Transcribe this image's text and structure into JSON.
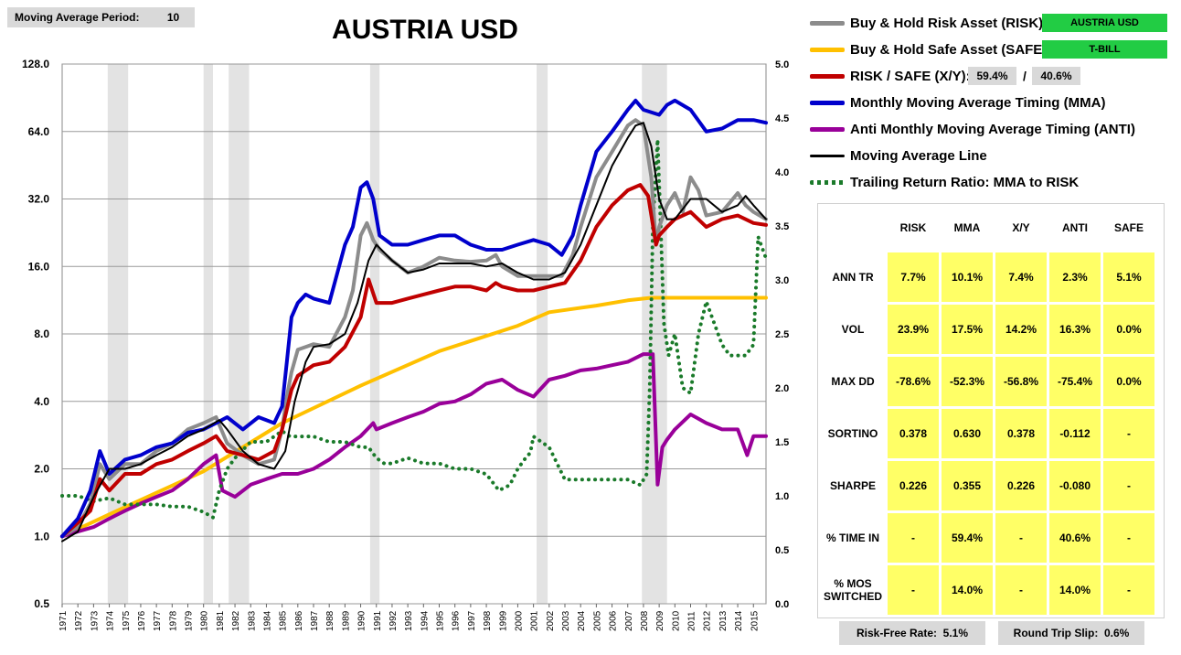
{
  "header": {
    "period_label": "Moving Average Period:",
    "period_value": "10"
  },
  "chart_data": {
    "type": "line",
    "title": "AUSTRIA USD",
    "y_scale": "log2",
    "ylim": [
      0.5,
      128.0
    ],
    "y_ticks": [
      "0.5",
      "1.0",
      "2.0",
      "4.0",
      "8.0",
      "16.0",
      "32.0",
      "64.0",
      "128.0"
    ],
    "y2lim": [
      0.0,
      5.0
    ],
    "y2_ticks": [
      "0.0",
      "0.5",
      "1.0",
      "1.5",
      "2.0",
      "2.5",
      "3.0",
      "3.5",
      "4.0",
      "4.5",
      "5.0"
    ],
    "x_ticks": [
      "1971",
      "1972",
      "1973",
      "1974",
      "1975",
      "1976",
      "1977",
      "1978",
      "1979",
      "1980",
      "1981",
      "1982",
      "1983",
      "1984",
      "1985",
      "1986",
      "1987",
      "1988",
      "1989",
      "1990",
      "1991",
      "1992",
      "1993",
      "1994",
      "1995",
      "1996",
      "1997",
      "1998",
      "1999",
      "2000",
      "2001",
      "2002",
      "2003",
      "2004",
      "2005",
      "2006",
      "2007",
      "2008",
      "2009",
      "2010",
      "2011",
      "2012",
      "2013",
      "2014",
      "2015"
    ],
    "xlim": [
      1971.0,
      2015.8
    ],
    "grid": "horizontal",
    "recessions": [
      [
        1973.9,
        1975.2
      ],
      [
        1980.0,
        1980.6
      ],
      [
        1981.6,
        1982.9
      ],
      [
        1990.6,
        1991.2
      ],
      [
        2001.2,
        2001.9
      ],
      [
        2007.9,
        2009.5
      ]
    ],
    "series": [
      {
        "name": "RISK",
        "color": "#8c8c8c",
        "axis": "left",
        "x": [
          1971.0,
          1972.0,
          1972.8,
          1973.4,
          1974.0,
          1975.0,
          1976.0,
          1977.0,
          1978.0,
          1979.0,
          1980.0,
          1980.8,
          1981.5,
          1982.5,
          1983.5,
          1984.5,
          1985.0,
          1985.3,
          1985.6,
          1986.0,
          1986.5,
          1987.0,
          1988.0,
          1989.0,
          1989.5,
          1990.0,
          1990.4,
          1990.8,
          1991.2,
          1992.0,
          1993.0,
          1994.0,
          1995.0,
          1996.0,
          1997.0,
          1998.0,
          1998.6,
          1999.0,
          2000.0,
          2001.0,
          2002.0,
          2002.8,
          2003.5,
          2004.0,
          2005.0,
          2006.0,
          2007.0,
          2007.5,
          2008.0,
          2008.5,
          2008.8,
          2009.0,
          2009.5,
          2010.0,
          2010.5,
          2011.0,
          2011.5,
          2012.0,
          2013.0,
          2014.0,
          2014.5,
          2015.0,
          2015.8
        ],
        "y": [
          1.0,
          1.1,
          1.4,
          2.1,
          1.8,
          2.1,
          2.1,
          2.4,
          2.6,
          3.0,
          3.2,
          3.4,
          2.6,
          2.3,
          2.1,
          2.2,
          3.0,
          4.2,
          5.4,
          6.8,
          7.0,
          7.2,
          7.0,
          9.5,
          12.5,
          22.0,
          25.0,
          21.0,
          19.0,
          17.0,
          15.0,
          16.0,
          17.5,
          17.0,
          16.8,
          17.0,
          18.0,
          16.0,
          14.5,
          14.5,
          14.5,
          14.5,
          18.0,
          24.0,
          40.0,
          52.0,
          68.0,
          72.0,
          68.0,
          40.0,
          20.0,
          24.0,
          30.0,
          34.0,
          28.0,
          40.0,
          35.0,
          27.0,
          28.0,
          34.0,
          30.0,
          28.0,
          26.0
        ]
      },
      {
        "name": "SAFE",
        "color": "#ffc000",
        "axis": "left",
        "x": [
          1971.0,
          1975.0,
          1980.0,
          1985.0,
          1990.0,
          1995.0,
          2000.0,
          2002.0,
          2005.0,
          2007.0,
          2008.5,
          2015.8
        ],
        "y": [
          1.0,
          1.35,
          1.95,
          3.2,
          4.7,
          6.7,
          8.7,
          10.0,
          10.7,
          11.3,
          11.6,
          11.6
        ]
      },
      {
        "name": "X/Y",
        "color": "#c00000",
        "axis": "left",
        "x": [
          1971.0,
          1972.0,
          1972.8,
          1973.4,
          1974.0,
          1975.0,
          1976.0,
          1977.0,
          1978.0,
          1979.0,
          1980.0,
          1980.8,
          1981.5,
          1982.5,
          1983.5,
          1984.5,
          1985.0,
          1985.6,
          1986.0,
          1987.0,
          1988.0,
          1989.0,
          1990.0,
          1990.5,
          1991.0,
          1992.0,
          1993.0,
          1994.0,
          1995.0,
          1996.0,
          1997.0,
          1998.0,
          1998.6,
          1999.0,
          2000.0,
          2001.0,
          2002.0,
          2003.0,
          2004.0,
          2005.0,
          2006.0,
          2007.0,
          2007.8,
          2008.3,
          2008.8,
          2009.0,
          2009.5,
          2010.0,
          2011.0,
          2012.0,
          2013.0,
          2014.0,
          2015.0,
          2015.8
        ],
        "y": [
          1.0,
          1.15,
          1.3,
          1.8,
          1.6,
          1.9,
          1.9,
          2.1,
          2.2,
          2.4,
          2.6,
          2.8,
          2.4,
          2.3,
          2.2,
          2.4,
          3.0,
          4.5,
          5.2,
          5.8,
          6.0,
          7.0,
          9.5,
          14.0,
          11.0,
          11.0,
          11.5,
          12.0,
          12.5,
          13.0,
          13.0,
          12.5,
          13.5,
          13.0,
          12.5,
          12.5,
          13.0,
          13.5,
          17.0,
          24.0,
          30.0,
          35.0,
          37.0,
          33.0,
          20.0,
          22.0,
          24.0,
          26.0,
          28.0,
          24.0,
          26.0,
          27.0,
          25.0,
          24.5
        ]
      },
      {
        "name": "MMA",
        "color": "#0000cc",
        "axis": "left",
        "x": [
          1971.0,
          1972.0,
          1972.8,
          1973.4,
          1974.0,
          1975.0,
          1976.0,
          1977.0,
          1978.0,
          1979.0,
          1980.0,
          1980.8,
          1981.5,
          1982.5,
          1983.5,
          1984.5,
          1985.0,
          1985.3,
          1985.6,
          1986.0,
          1986.5,
          1987.0,
          1988.0,
          1989.0,
          1989.5,
          1990.0,
          1990.4,
          1990.8,
          1991.2,
          1992.0,
          1993.0,
          1994.0,
          1995.0,
          1996.0,
          1997.0,
          1998.0,
          1999.0,
          2000.0,
          2001.0,
          2002.0,
          2002.8,
          2003.5,
          2004.0,
          2005.0,
          2006.0,
          2007.0,
          2007.5,
          2008.0,
          2009.0,
          2009.5,
          2010.0,
          2011.0,
          2012.0,
          2013.0,
          2014.0,
          2015.0,
          2015.8
        ],
        "y": [
          1.0,
          1.2,
          1.6,
          2.4,
          1.9,
          2.2,
          2.3,
          2.5,
          2.6,
          2.9,
          3.0,
          3.2,
          3.4,
          3.0,
          3.4,
          3.2,
          3.8,
          6.0,
          9.5,
          11.0,
          12.0,
          11.5,
          11.0,
          20.0,
          24.0,
          36.0,
          38.0,
          32.0,
          22.0,
          20.0,
          20.0,
          21.0,
          22.0,
          22.0,
          20.0,
          19.0,
          19.0,
          20.0,
          21.0,
          20.0,
          18.0,
          22.0,
          30.0,
          52.0,
          64.0,
          80.0,
          88.0,
          80.0,
          76.0,
          84.0,
          88.0,
          80.0,
          64.0,
          66.0,
          72.0,
          72.0,
          70.0
        ]
      },
      {
        "name": "ANTI",
        "color": "#990099",
        "axis": "left",
        "x": [
          1971.0,
          1972.0,
          1973.0,
          1974.0,
          1975.0,
          1976.0,
          1977.0,
          1978.0,
          1979.0,
          1980.0,
          1980.8,
          1981.2,
          1982.0,
          1983.0,
          1984.0,
          1985.0,
          1986.0,
          1987.0,
          1988.0,
          1989.0,
          1990.0,
          1990.8,
          1991.0,
          1992.0,
          1993.0,
          1994.0,
          1995.0,
          1996.0,
          1997.0,
          1998.0,
          1999.0,
          2000.0,
          2001.0,
          2002.0,
          2003.0,
          2004.0,
          2005.0,
          2006.0,
          2007.0,
          2008.0,
          2008.6,
          2008.9,
          2009.2,
          2009.5,
          2010.0,
          2011.0,
          2012.0,
          2013.0,
          2014.0,
          2014.6,
          2015.0,
          2015.8
        ],
        "y": [
          1.0,
          1.05,
          1.1,
          1.2,
          1.3,
          1.4,
          1.5,
          1.6,
          1.8,
          2.1,
          2.3,
          1.6,
          1.5,
          1.7,
          1.8,
          1.9,
          1.9,
          2.0,
          2.2,
          2.5,
          2.8,
          3.2,
          3.0,
          3.2,
          3.4,
          3.6,
          3.9,
          4.0,
          4.3,
          4.8,
          5.0,
          4.5,
          4.2,
          5.0,
          5.2,
          5.5,
          5.6,
          5.8,
          6.0,
          6.5,
          6.5,
          1.7,
          2.5,
          2.7,
          3.0,
          3.5,
          3.2,
          3.0,
          3.0,
          2.3,
          2.8,
          2.8
        ]
      },
      {
        "name": "Moving Average Line",
        "color": "#000000",
        "axis": "left",
        "x": [
          1971.0,
          1972.0,
          1973.0,
          1974.0,
          1975.0,
          1976.0,
          1977.0,
          1978.0,
          1979.0,
          1980.0,
          1981.0,
          1981.5,
          1982.5,
          1983.5,
          1984.5,
          1985.2,
          1985.8,
          1986.5,
          1987.0,
          1988.0,
          1989.0,
          1989.8,
          1990.5,
          1991.0,
          1992.0,
          1993.0,
          1994.0,
          1995.0,
          1996.0,
          1997.0,
          1998.0,
          1999.0,
          2000.0,
          2001.0,
          2002.0,
          2003.0,
          2004.0,
          2005.0,
          2006.0,
          2007.0,
          2007.5,
          2008.0,
          2008.5,
          2009.0,
          2009.5,
          2010.0,
          2011.0,
          2012.0,
          2013.0,
          2014.0,
          2014.5,
          2015.0,
          2015.8
        ],
        "y": [
          0.95,
          1.05,
          1.5,
          2.0,
          2.0,
          2.1,
          2.3,
          2.5,
          2.8,
          3.0,
          3.3,
          3.0,
          2.4,
          2.1,
          2.0,
          2.4,
          4.0,
          6.0,
          7.0,
          7.2,
          8.0,
          11.0,
          17.0,
          20.0,
          17.0,
          15.0,
          15.5,
          16.5,
          16.5,
          16.5,
          16.0,
          16.5,
          15.0,
          14.0,
          14.0,
          15.0,
          20.0,
          30.0,
          45.0,
          60.0,
          68.0,
          70.0,
          55.0,
          32.0,
          26.0,
          26.0,
          32.0,
          32.0,
          28.0,
          30.0,
          33.0,
          30.0,
          26.0
        ]
      },
      {
        "name": "Trailing Return Ratio: MMA to RISK",
        "color": "#1a7a2a",
        "axis": "right",
        "style": "dotted",
        "x": [
          1971.0,
          1972.0,
          1973.0,
          1974.0,
          1975.0,
          1976.0,
          1977.0,
          1978.0,
          1979.0,
          1980.0,
          1980.6,
          1981.0,
          1981.5,
          1982.0,
          1983.0,
          1984.0,
          1985.0,
          1985.5,
          1986.0,
          1987.0,
          1988.0,
          1989.0,
          1990.0,
          1990.5,
          1991.0,
          1991.5,
          1992.0,
          1993.0,
          1994.0,
          1995.0,
          1996.0,
          1997.0,
          1998.0,
          1998.8,
          1999.5,
          2000.0,
          2000.5,
          2000.8,
          2001.0,
          2001.5,
          2002.0,
          2002.5,
          2003.0,
          2004.0,
          2005.0,
          2006.0,
          2007.0,
          2007.8,
          2008.2,
          2008.4,
          2008.6,
          2008.9,
          2009.1,
          2009.3,
          2009.6,
          2010.0,
          2010.5,
          2011.0,
          2011.5,
          2012.0,
          2012.5,
          2013.0,
          2013.5,
          2014.0,
          2014.5,
          2015.0,
          2015.3,
          2015.8
        ],
        "y": [
          1.0,
          1.0,
          0.95,
          0.98,
          0.92,
          0.92,
          0.92,
          0.9,
          0.9,
          0.85,
          0.8,
          1.05,
          1.25,
          1.35,
          1.5,
          1.5,
          1.6,
          1.55,
          1.55,
          1.55,
          1.5,
          1.5,
          1.45,
          1.45,
          1.35,
          1.3,
          1.3,
          1.35,
          1.3,
          1.3,
          1.25,
          1.25,
          1.2,
          1.05,
          1.1,
          1.25,
          1.35,
          1.4,
          1.55,
          1.5,
          1.45,
          1.3,
          1.15,
          1.15,
          1.15,
          1.15,
          1.15,
          1.1,
          1.2,
          2.0,
          3.5,
          4.3,
          3.5,
          2.6,
          2.3,
          2.5,
          2.0,
          1.95,
          2.5,
          2.8,
          2.6,
          2.4,
          2.3,
          2.3,
          2.3,
          2.4,
          3.4,
          3.2
        ]
      }
    ]
  },
  "legend": {
    "risk": "Buy & Hold Risk Asset (RISK):",
    "safe": "Buy & Hold Safe Asset (SAFE):",
    "xy": "RISK / SAFE (X/Y):",
    "mma": "Monthly Moving Average Timing (MMA)",
    "anti": "Anti Monthly Moving Average Timing (ANTI)",
    "ma_line": "Moving Average Line",
    "trailing": "Trailing Return Ratio: MMA to RISK",
    "risk_asset": "AUSTRIA USD",
    "safe_asset": "T-BILL",
    "risk_pct": "59.4%",
    "slash": "/",
    "safe_pct": "40.6%"
  },
  "stats": {
    "columns": [
      "RISK",
      "MMA",
      "X/Y",
      "ANTI",
      "SAFE"
    ],
    "rows": [
      {
        "label": "ANN TR",
        "values": [
          "7.7%",
          "10.1%",
          "7.4%",
          "2.3%",
          "5.1%"
        ]
      },
      {
        "label": "VOL",
        "values": [
          "23.9%",
          "17.5%",
          "14.2%",
          "16.3%",
          "0.0%"
        ]
      },
      {
        "label": "MAX DD",
        "values": [
          "-78.6%",
          "-52.3%",
          "-56.8%",
          "-75.4%",
          "0.0%"
        ]
      },
      {
        "label": "SORTINO",
        "values": [
          "0.378",
          "0.630",
          "0.378",
          "-0.112",
          "-"
        ]
      },
      {
        "label": "SHARPE",
        "values": [
          "0.226",
          "0.355",
          "0.226",
          "-0.080",
          "-"
        ]
      },
      {
        "label": "% TIME IN",
        "values": [
          "-",
          "59.4%",
          "-",
          "40.6%",
          "-"
        ]
      },
      {
        "label": "% MOS SWITCHED",
        "values": [
          "-",
          "14.0%",
          "-",
          "14.0%",
          "-"
        ]
      }
    ]
  },
  "footer": {
    "risk_free_label": "Risk-Free Rate:",
    "risk_free_value": "5.1%",
    "slip_label": "Round Trip Slip:",
    "slip_value": "0.6%"
  }
}
